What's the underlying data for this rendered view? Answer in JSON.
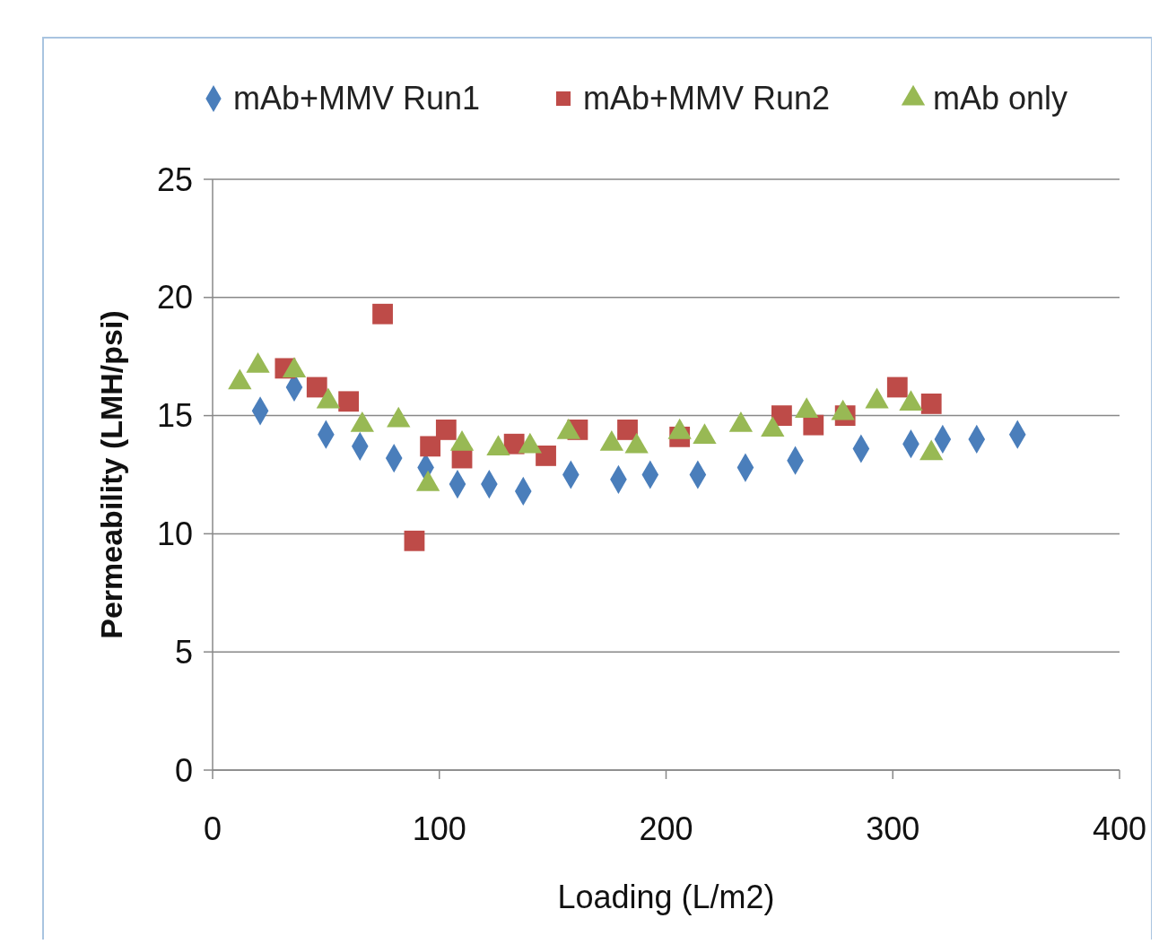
{
  "chart_data": {
    "type": "scatter",
    "xlabel": "Loading (L/m2)",
    "ylabel": "Permeability (LMH/psi)",
    "xlim": [
      0,
      400
    ],
    "xticks": [
      0,
      100,
      200,
      300,
      400
    ],
    "ylim": [
      0,
      25
    ],
    "yticks": [
      0,
      5,
      10,
      15,
      20,
      25
    ],
    "grid": "y",
    "legend": "top",
    "series": [
      {
        "name": "mAb+MMV Run1",
        "color": "#4a7ebb",
        "marker": "diamond",
        "x": [
          21,
          36,
          50,
          65,
          80,
          94,
          108,
          122,
          137,
          158,
          179,
          193,
          214,
          235,
          257,
          286,
          308,
          322,
          337,
          355
        ],
        "values": [
          15.2,
          16.2,
          14.2,
          13.7,
          13.2,
          12.8,
          12.1,
          12.1,
          11.8,
          12.5,
          12.3,
          12.5,
          12.5,
          12.8,
          13.1,
          13.6,
          13.8,
          14.0,
          14.0,
          14.2
        ]
      },
      {
        "name": "mAb+MMV Run2",
        "color": "#be4b48",
        "marker": "square",
        "x": [
          32,
          46,
          60,
          75,
          89,
          96,
          103,
          110,
          133,
          147,
          161,
          183,
          206,
          251,
          265,
          279,
          302,
          317
        ],
        "values": [
          17.0,
          16.2,
          15.6,
          19.3,
          9.7,
          13.7,
          14.4,
          13.2,
          13.8,
          13.3,
          14.4,
          14.4,
          14.1,
          15.0,
          14.6,
          15.0,
          16.2,
          15.5
        ]
      },
      {
        "name": "mAb only",
        "color": "#98b954",
        "marker": "triangle",
        "x": [
          12,
          20,
          36,
          51,
          66,
          82,
          95,
          110,
          126,
          140,
          157,
          176,
          187,
          206,
          217,
          233,
          247,
          262,
          278,
          293,
          308,
          317
        ],
        "values": [
          16.4,
          17.1,
          16.9,
          15.6,
          14.6,
          14.8,
          12.1,
          13.8,
          13.6,
          13.7,
          14.3,
          13.8,
          13.7,
          14.3,
          14.1,
          14.6,
          14.4,
          15.2,
          15.1,
          15.6,
          15.5,
          13.4
        ]
      }
    ]
  }
}
